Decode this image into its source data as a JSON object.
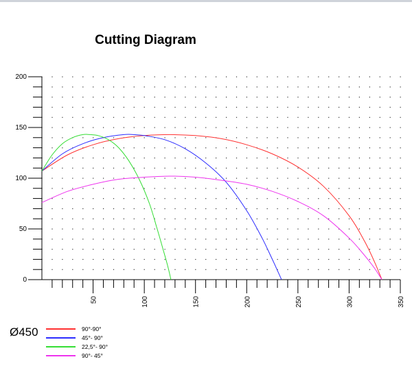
{
  "chart_data": {
    "type": "line",
    "title": "Cutting Diagram",
    "xlabel": "",
    "ylabel": "",
    "xlim": [
      0,
      350
    ],
    "ylim": [
      0,
      200
    ],
    "x_ticks": [
      50,
      100,
      150,
      200,
      250,
      300,
      350
    ],
    "y_ticks": [
      0,
      50,
      100,
      150,
      200
    ],
    "grid": true,
    "legend_title": "Ø450",
    "legend_position": "bottom-left",
    "series": [
      {
        "name": "90°-90°",
        "color": "#ff3030",
        "x": [
          0,
          25,
          50,
          75,
          100,
          125,
          150,
          175,
          200,
          225,
          250,
          275,
          300,
          315,
          325,
          332
        ],
        "y": [
          107,
          123,
          133,
          139,
          142,
          143,
          142,
          139,
          133,
          124,
          111,
          92,
          63,
          38,
          17,
          0
        ]
      },
      {
        "name": "45°- 90°",
        "color": "#2b2bff",
        "x": [
          0,
          20,
          40,
          60,
          80,
          90,
          100,
          120,
          140,
          160,
          180,
          200,
          215,
          225,
          230,
          234
        ],
        "y": [
          107,
          124,
          134,
          140,
          143,
          143,
          142,
          138,
          129,
          115,
          96,
          68,
          41,
          20,
          9,
          0
        ]
      },
      {
        "name": "22,5°- 90°",
        "color": "#33dd33",
        "x": [
          0,
          10,
          20,
          30,
          40,
          47,
          55,
          65,
          75,
          85,
          95,
          105,
          112,
          118,
          123,
          126
        ],
        "y": [
          107,
          123,
          134,
          140,
          143,
          143,
          142,
          138,
          130,
          117,
          99,
          75,
          52,
          31,
          13,
          0
        ]
      },
      {
        "name": "90°- 45°",
        "color": "#ee33ee",
        "x": [
          0,
          25,
          50,
          75,
          100,
          125,
          150,
          175,
          200,
          225,
          250,
          275,
          300,
          315,
          325,
          332
        ],
        "y": [
          76,
          87,
          94,
          99,
          101,
          102,
          101,
          98,
          94,
          87,
          77,
          63,
          41,
          24,
          11,
          0
        ]
      }
    ]
  }
}
